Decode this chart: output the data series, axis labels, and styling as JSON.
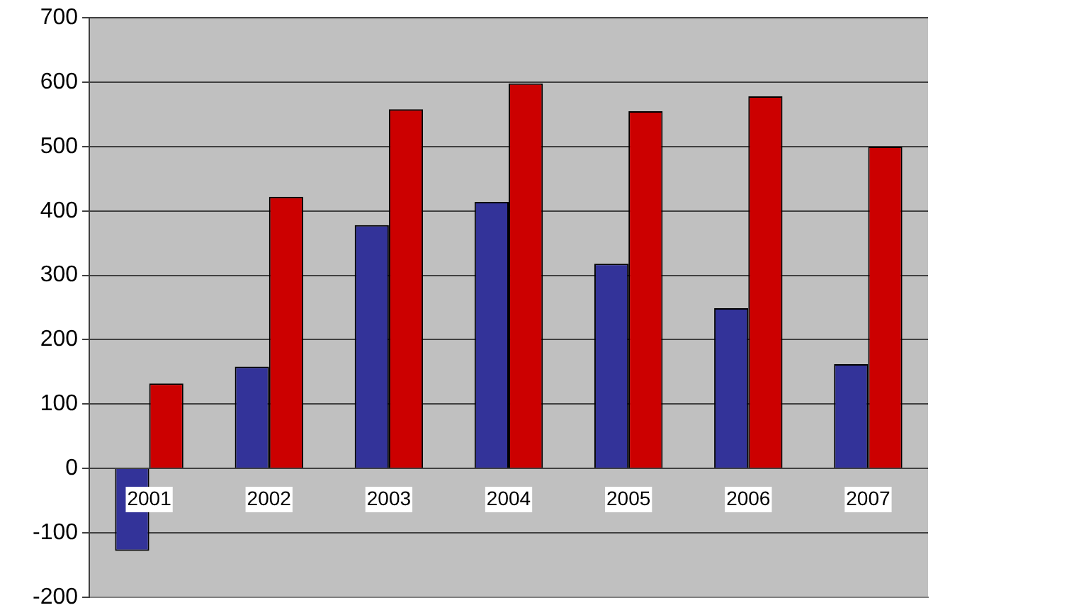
{
  "chart_data": {
    "type": "bar",
    "categories": [
      "2001",
      "2002",
      "2003",
      "2004",
      "2005",
      "2006",
      "2007"
    ],
    "series": [
      {
        "color": "#333399",
        "values": [
          -128,
          158,
          378,
          414,
          318,
          249,
          162
        ]
      },
      {
        "color": "#cc0000",
        "values": [
          132,
          422,
          558,
          598,
          555,
          578,
          500
        ]
      }
    ],
    "ylim": [
      -200,
      700
    ],
    "yticks": [
      -200,
      -100,
      0,
      100,
      200,
      300,
      400,
      500,
      600,
      700
    ],
    "grid": "y",
    "legend": false
  }
}
